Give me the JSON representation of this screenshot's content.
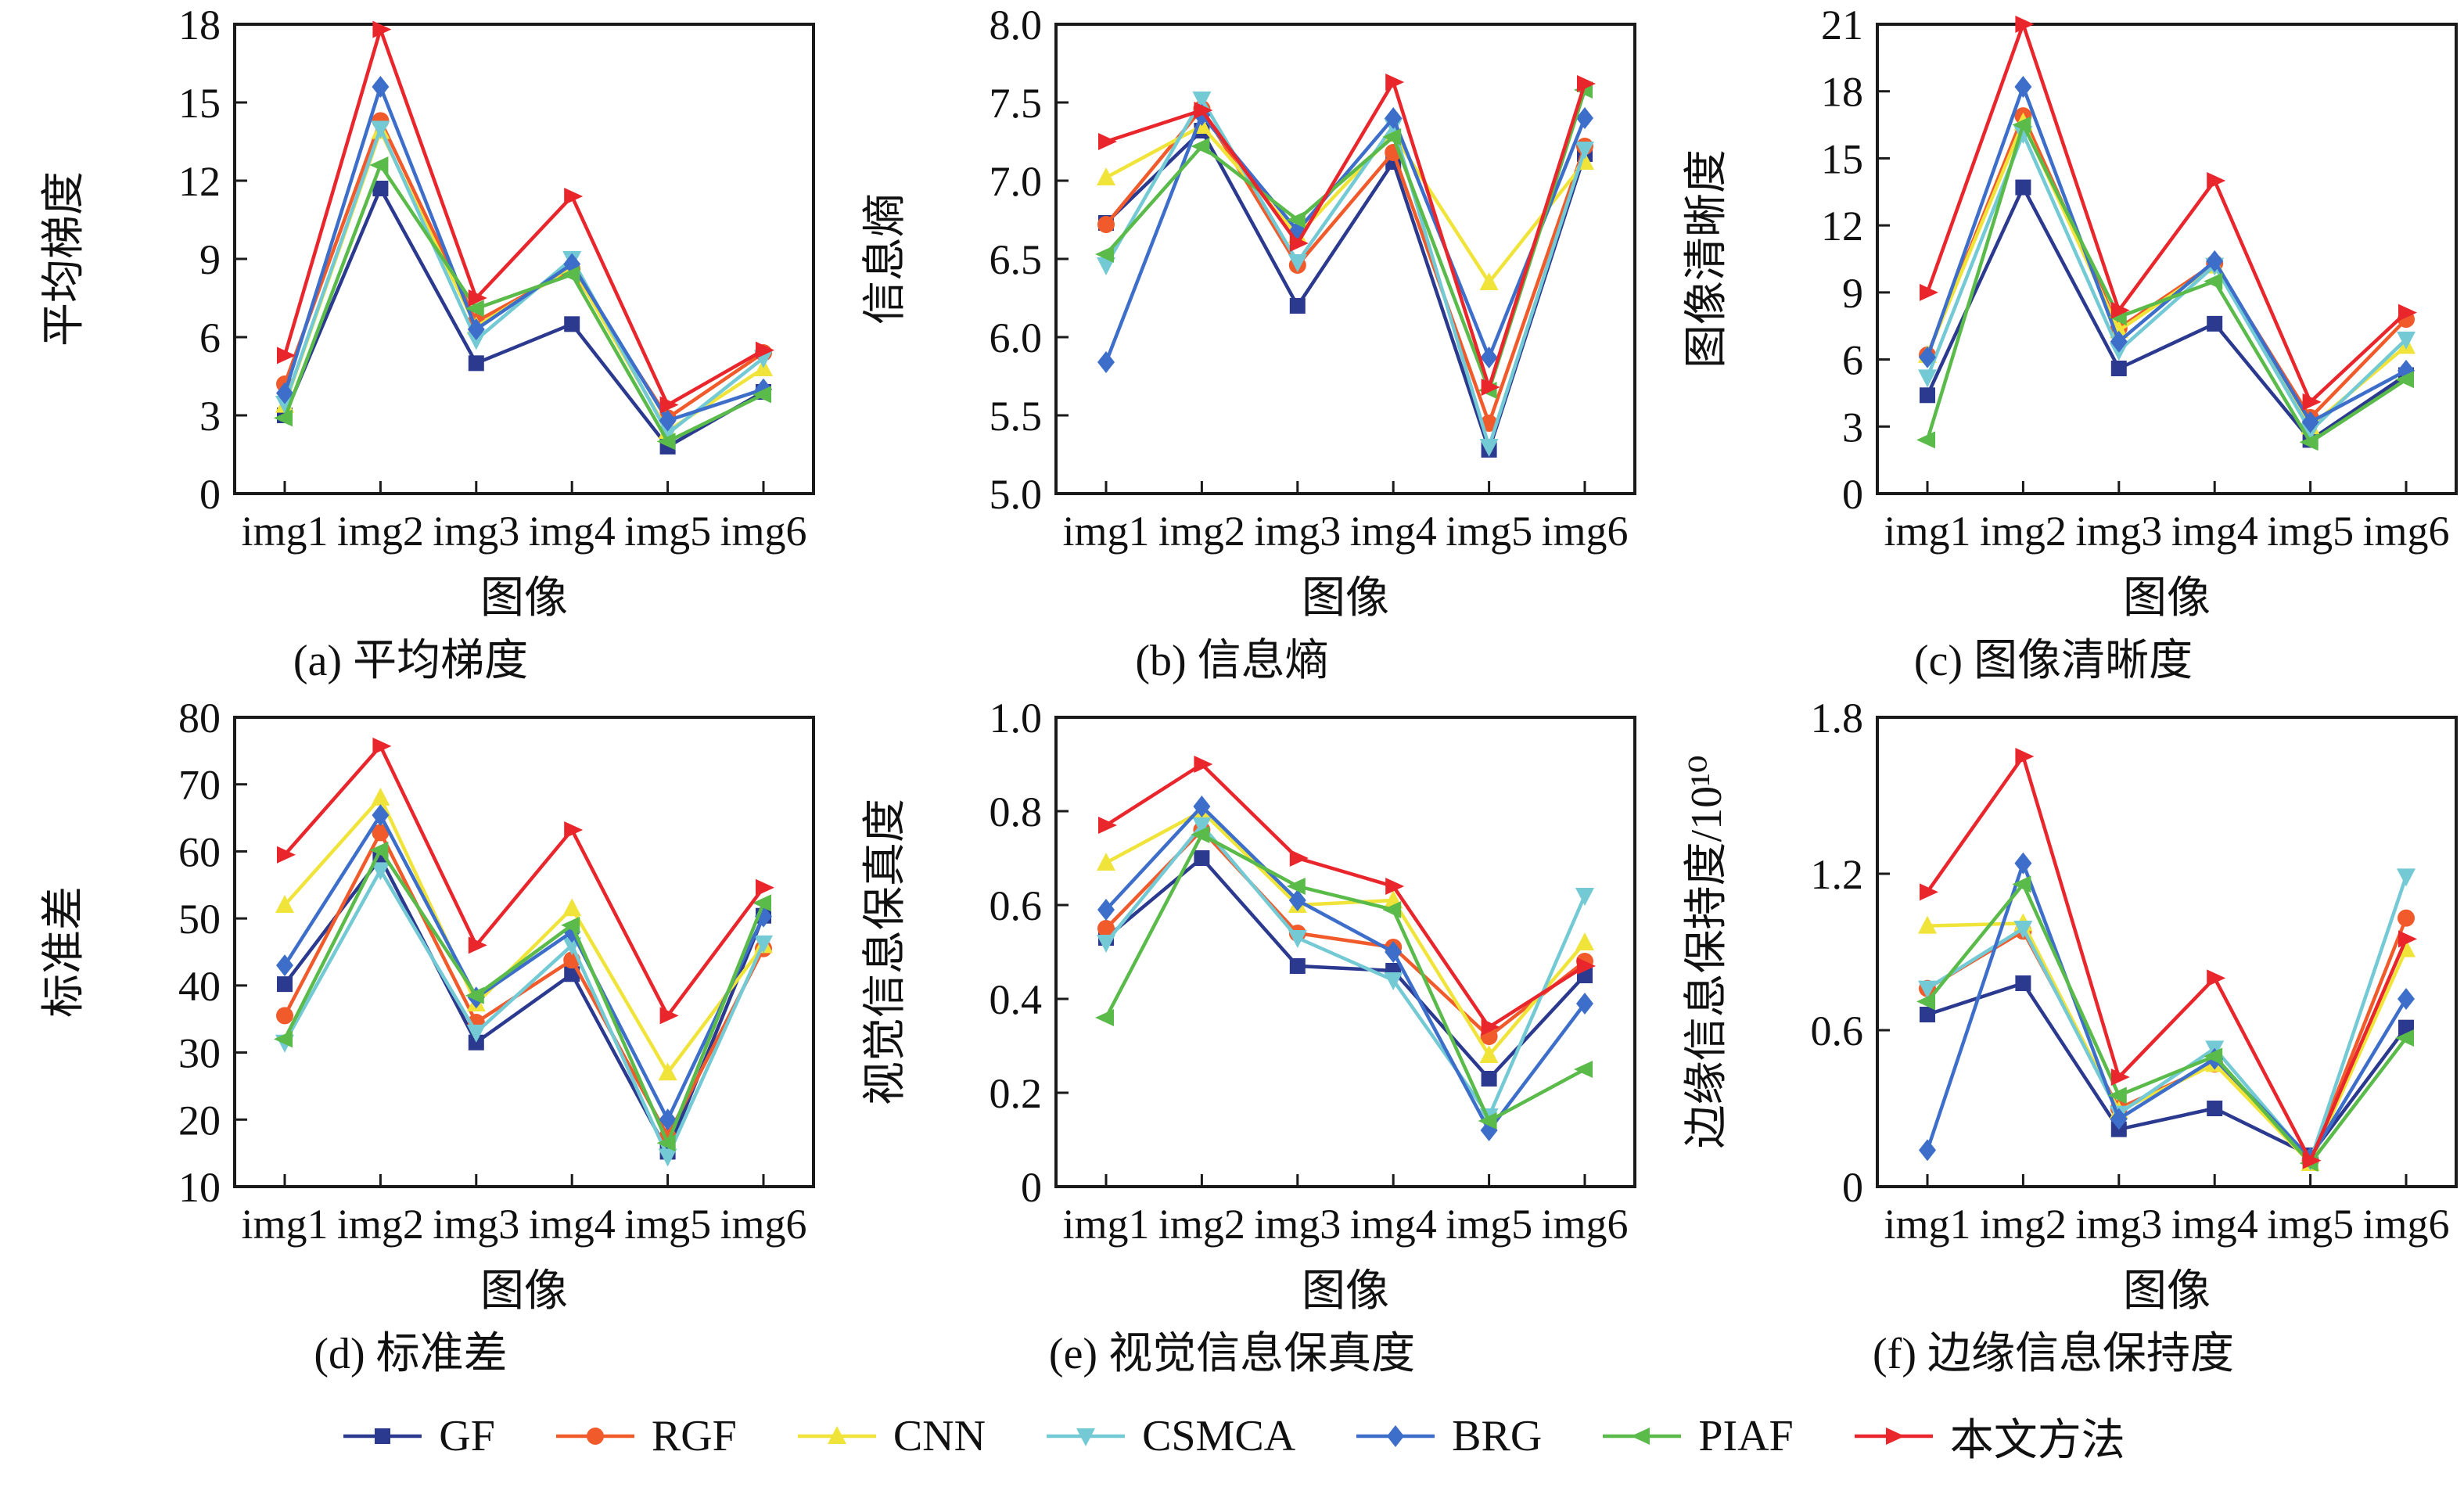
{
  "figure": {
    "background": "#ffffff",
    "grid": "off",
    "legend_position": "bottom",
    "axis_color": "#1a1a1a"
  },
  "legend": {
    "items": [
      {
        "label": "GF",
        "color": "#2b3a8f",
        "marker": "square"
      },
      {
        "label": "RGF",
        "color": "#f15b2b",
        "marker": "circle"
      },
      {
        "label": "CNN",
        "color": "#f0e43b",
        "marker": "triangle-up"
      },
      {
        "label": "CSMCA",
        "color": "#73c9d4",
        "marker": "triangle-down"
      },
      {
        "label": "BRG",
        "color": "#3d6ec9",
        "marker": "diamond"
      },
      {
        "label": "PIAF",
        "color": "#5bbb4a",
        "marker": "triangle-left"
      },
      {
        "label": "本文方法",
        "color": "#e8262c",
        "marker": "triangle-right"
      }
    ]
  },
  "chart_data": [
    {
      "type": "line",
      "title": "(a) 平均梯度",
      "xlabel": "图像",
      "ylabel": "平均梯度",
      "ylim": [
        0,
        18
      ],
      "yticks": [
        0,
        3,
        6,
        9,
        12,
        15,
        18
      ],
      "ytick_labels": [
        "0",
        "3",
        "6",
        "9",
        "12",
        "15",
        "18"
      ],
      "categories": [
        "img1",
        "img2",
        "img3",
        "img4",
        "img5",
        "img6"
      ],
      "series": [
        {
          "name": "GF",
          "values": [
            3.0,
            11.7,
            5.0,
            6.5,
            1.8,
            3.9
          ]
        },
        {
          "name": "RGF",
          "values": [
            4.2,
            14.3,
            6.6,
            8.6,
            2.9,
            5.4
          ]
        },
        {
          "name": "CNN",
          "values": [
            3.4,
            13.9,
            6.4,
            8.7,
            2.4,
            4.8
          ]
        },
        {
          "name": "CSMCA",
          "values": [
            3.45,
            14.0,
            5.9,
            9.0,
            2.3,
            5.2
          ]
        },
        {
          "name": "BRG",
          "values": [
            3.85,
            15.6,
            6.3,
            8.8,
            2.8,
            4.0
          ]
        },
        {
          "name": "PIAF",
          "values": [
            2.9,
            12.6,
            7.1,
            8.4,
            2.0,
            3.8
          ]
        },
        {
          "name": "本文方法",
          "values": [
            5.3,
            17.8,
            7.5,
            11.4,
            3.4,
            5.5
          ]
        }
      ]
    },
    {
      "type": "line",
      "title": "(b) 信息熵",
      "xlabel": "图像",
      "ylabel": "信息熵",
      "ylim": [
        5.0,
        8.0
      ],
      "yticks": [
        5.0,
        5.5,
        6.0,
        6.5,
        7.0,
        7.5,
        8.0
      ],
      "ytick_labels": [
        "5.0",
        "5.5",
        "6.0",
        "6.5",
        "7.0",
        "7.5",
        "8.0"
      ],
      "categories": [
        "img1",
        "img2",
        "img3",
        "img4",
        "img5",
        "img6"
      ],
      "series": [
        {
          "name": "GF",
          "values": [
            6.73,
            7.32,
            6.2,
            7.12,
            5.28,
            7.17
          ]
        },
        {
          "name": "RGF",
          "values": [
            6.72,
            7.46,
            6.46,
            7.18,
            5.45,
            7.22
          ]
        },
        {
          "name": "CNN",
          "values": [
            7.02,
            7.35,
            6.65,
            7.3,
            6.35,
            7.12
          ]
        },
        {
          "name": "CSMCA",
          "values": [
            6.46,
            7.52,
            6.48,
            7.35,
            5.3,
            7.2
          ]
        },
        {
          "name": "BRG",
          "values": [
            5.84,
            7.42,
            6.68,
            7.4,
            5.87,
            7.4
          ]
        },
        {
          "name": "PIAF",
          "values": [
            6.53,
            7.22,
            6.75,
            7.28,
            5.66,
            7.58
          ]
        },
        {
          "name": "本文方法",
          "values": [
            7.25,
            7.45,
            6.6,
            7.63,
            5.68,
            7.62
          ]
        }
      ]
    },
    {
      "type": "line",
      "title": "(c) 图像清晰度",
      "xlabel": "图像",
      "ylabel": "图像清晰度",
      "ylim": [
        0,
        21
      ],
      "yticks": [
        0,
        3,
        6,
        9,
        12,
        15,
        18,
        21
      ],
      "ytick_labels": [
        "0",
        "3",
        "6",
        "9",
        "12",
        "15",
        "18",
        "21"
      ],
      "categories": [
        "img1",
        "img2",
        "img3",
        "img4",
        "img5",
        "img6"
      ],
      "series": [
        {
          "name": "GF",
          "values": [
            4.4,
            13.7,
            5.6,
            7.6,
            2.4,
            5.3
          ]
        },
        {
          "name": "RGF",
          "values": [
            6.2,
            16.9,
            7.4,
            10.3,
            3.4,
            7.8
          ]
        },
        {
          "name": "CNN",
          "values": [
            6.2,
            16.6,
            7.3,
            10.2,
            3.0,
            6.6
          ]
        },
        {
          "name": "CSMCA",
          "values": [
            5.2,
            16.1,
            6.4,
            10.2,
            2.8,
            6.9
          ]
        },
        {
          "name": "BRG",
          "values": [
            6.1,
            18.2,
            6.8,
            10.4,
            3.2,
            5.5
          ]
        },
        {
          "name": "PIAF",
          "values": [
            2.4,
            16.5,
            7.9,
            9.5,
            2.3,
            5.1
          ]
        },
        {
          "name": "本文方法",
          "values": [
            9.0,
            21.0,
            8.2,
            14.0,
            4.1,
            8.1
          ]
        }
      ]
    },
    {
      "type": "line",
      "title": "(d) 标准差",
      "xlabel": "图像",
      "ylabel": "标准差",
      "ylim": [
        10,
        80
      ],
      "yticks": [
        10,
        20,
        30,
        40,
        50,
        60,
        70,
        80
      ],
      "ytick_labels": [
        "10",
        "20",
        "30",
        "40",
        "50",
        "60",
        "70",
        "80"
      ],
      "categories": [
        "img1",
        "img2",
        "img3",
        "img4",
        "img5",
        "img6"
      ],
      "series": [
        {
          "name": "GF",
          "values": [
            40.2,
            59.0,
            31.5,
            41.7,
            15.2,
            50.4
          ]
        },
        {
          "name": "RGF",
          "values": [
            35.5,
            62.8,
            34.5,
            43.8,
            17.5,
            45.5
          ]
        },
        {
          "name": "CNN",
          "values": [
            52.0,
            68.0,
            37.3,
            51.5,
            27.0,
            46.0
          ]
        },
        {
          "name": "CSMCA",
          "values": [
            31.5,
            57.2,
            33.0,
            46.0,
            14.5,
            46.3
          ]
        },
        {
          "name": "BRG",
          "values": [
            43.0,
            65.4,
            38.2,
            48.0,
            20.0,
            50.3
          ]
        },
        {
          "name": "PIAF",
          "values": [
            32.0,
            60.2,
            38.5,
            49.0,
            16.5,
            52.3
          ]
        },
        {
          "name": "本文方法",
          "values": [
            59.5,
            75.7,
            46.0,
            63.2,
            35.5,
            54.6
          ]
        }
      ]
    },
    {
      "type": "line",
      "title": "(e) 视觉信息保真度",
      "xlabel": "图像",
      "ylabel": "视觉信息保真度",
      "ylim": [
        0,
        1.0
      ],
      "yticks": [
        0,
        0.2,
        0.4,
        0.6,
        0.8,
        1.0
      ],
      "ytick_labels": [
        "0",
        "0.2",
        "0.4",
        "0.6",
        "0.8",
        "1.0"
      ],
      "categories": [
        "img1",
        "img2",
        "img3",
        "img4",
        "img5",
        "img6"
      ],
      "series": [
        {
          "name": "GF",
          "values": [
            0.53,
            0.7,
            0.47,
            0.46,
            0.23,
            0.45
          ]
        },
        {
          "name": "RGF",
          "values": [
            0.55,
            0.76,
            0.54,
            0.51,
            0.32,
            0.48
          ]
        },
        {
          "name": "CNN",
          "values": [
            0.69,
            0.8,
            0.6,
            0.61,
            0.28,
            0.52
          ]
        },
        {
          "name": "CSMCA",
          "values": [
            0.52,
            0.77,
            0.53,
            0.44,
            0.15,
            0.62
          ]
        },
        {
          "name": "BRG",
          "values": [
            0.59,
            0.81,
            0.61,
            0.5,
            0.12,
            0.39
          ]
        },
        {
          "name": "PIAF",
          "values": [
            0.36,
            0.75,
            0.64,
            0.59,
            0.14,
            0.25
          ]
        },
        {
          "name": "本文方法",
          "values": [
            0.77,
            0.9,
            0.7,
            0.64,
            0.34,
            0.47
          ]
        }
      ]
    },
    {
      "type": "line",
      "title": "(f) 边缘信息保持度",
      "xlabel": "图像",
      "ylabel": "边缘信息保持度/10¹⁰",
      "ylim": [
        0,
        1.8
      ],
      "yticks": [
        0,
        0.6,
        1.2,
        1.8
      ],
      "ytick_labels": [
        "0",
        "0.6",
        "1.2",
        "1.8"
      ],
      "categories": [
        "img1",
        "img2",
        "img3",
        "img4",
        "img5",
        "img6"
      ],
      "series": [
        {
          "name": "GF",
          "values": [
            0.66,
            0.78,
            0.22,
            0.3,
            0.12,
            0.61
          ]
        },
        {
          "name": "RGF",
          "values": [
            0.76,
            0.98,
            0.3,
            0.47,
            0.1,
            1.03
          ]
        },
        {
          "name": "CNN",
          "values": [
            1.0,
            1.01,
            0.29,
            0.47,
            0.09,
            0.91
          ]
        },
        {
          "name": "CSMCA",
          "values": [
            0.76,
            0.99,
            0.28,
            0.53,
            0.1,
            1.19
          ]
        },
        {
          "name": "BRG",
          "values": [
            0.14,
            1.24,
            0.26,
            0.49,
            0.11,
            0.72
          ]
        },
        {
          "name": "PIAF",
          "values": [
            0.71,
            1.16,
            0.35,
            0.5,
            0.09,
            0.57
          ]
        },
        {
          "name": "本文方法",
          "values": [
            1.13,
            1.65,
            0.42,
            0.8,
            0.1,
            0.95
          ]
        }
      ]
    }
  ]
}
